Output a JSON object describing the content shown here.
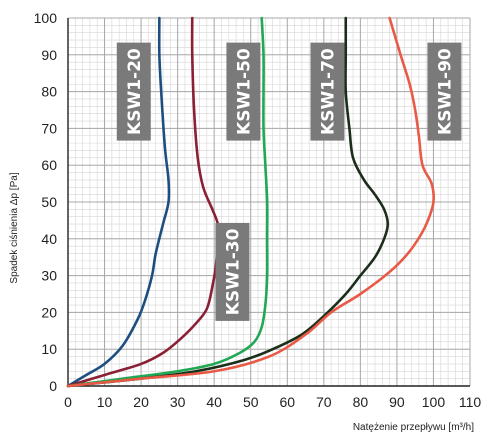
{
  "chart_data": {
    "type": "line",
    "title": "",
    "xlabel": "Natężenie przepływu [m³/h]",
    "ylabel": "Spadek ciśnienia Δp [Pa]",
    "xlim": [
      0,
      110
    ],
    "ylim": [
      0,
      100
    ],
    "x_ticks": [
      "0",
      "10",
      "20",
      "30",
      "40",
      "50",
      "60",
      "70",
      "80",
      "90",
      "100",
      "110"
    ],
    "y_ticks": [
      "0",
      "10",
      "20",
      "30",
      "40",
      "50",
      "60",
      "70",
      "80",
      "90",
      "100"
    ],
    "grid": {
      "major": true,
      "minor": true,
      "minor_step_x": 2,
      "minor_step_y": 2
    },
    "series": [
      {
        "name": "KSW1-20",
        "color": "#1c4f80",
        "points": [
          [
            0,
            0
          ],
          [
            5,
            3
          ],
          [
            10,
            6
          ],
          [
            15,
            11
          ],
          [
            19,
            18
          ],
          [
            21,
            23
          ],
          [
            23,
            30
          ],
          [
            24,
            36
          ],
          [
            26,
            44
          ],
          [
            27.5,
            50
          ],
          [
            27.5,
            56
          ],
          [
            26.5,
            65
          ],
          [
            25.5,
            80
          ],
          [
            25,
            90
          ],
          [
            25,
            100
          ]
        ]
      },
      {
        "name": "KSW1-30",
        "color": "#8b1f33",
        "points": [
          [
            0,
            0
          ],
          [
            10,
            3
          ],
          [
            20,
            6
          ],
          [
            26,
            9
          ],
          [
            31,
            13
          ],
          [
            35,
            17
          ],
          [
            38,
            21
          ],
          [
            39.5,
            27
          ],
          [
            40.5,
            33
          ],
          [
            41,
            40
          ],
          [
            41,
            44
          ],
          [
            39.5,
            48
          ],
          [
            37,
            54
          ],
          [
            35.5,
            62
          ],
          [
            34.5,
            75
          ],
          [
            34,
            90
          ],
          [
            34,
            100
          ]
        ]
      },
      {
        "name": "KSW1-50",
        "color": "#20a855",
        "points": [
          [
            0,
            0
          ],
          [
            15,
            2
          ],
          [
            30,
            4
          ],
          [
            40,
            6
          ],
          [
            47,
            9
          ],
          [
            51,
            12
          ],
          [
            53,
            16
          ],
          [
            54,
            22
          ],
          [
            54.5,
            30
          ],
          [
            54.5,
            40
          ],
          [
            54.5,
            50
          ],
          [
            54,
            60
          ],
          [
            53.5,
            70
          ],
          [
            53.5,
            80
          ],
          [
            53.5,
            90
          ],
          [
            53,
            100
          ]
        ]
      },
      {
        "name": "KSW1-70",
        "color": "#1a2e1a",
        "points": [
          [
            0,
            0
          ],
          [
            20,
            2
          ],
          [
            35,
            4
          ],
          [
            48,
            7
          ],
          [
            56,
            10
          ],
          [
            64,
            14
          ],
          [
            70,
            19
          ],
          [
            76,
            25
          ],
          [
            80,
            30
          ],
          [
            84,
            35
          ],
          [
            86.5,
            40
          ],
          [
            87.5,
            44
          ],
          [
            86.5,
            48
          ],
          [
            84,
            52
          ],
          [
            81,
            56
          ],
          [
            78,
            62
          ],
          [
            77,
            70
          ],
          [
            76,
            80
          ],
          [
            76,
            90
          ],
          [
            76,
            100
          ]
        ]
      },
      {
        "name": "KSW1-90",
        "color": "#e85a45",
        "points": [
          [
            0,
            0
          ],
          [
            20,
            2
          ],
          [
            40,
            4
          ],
          [
            55,
            8
          ],
          [
            65,
            14
          ],
          [
            72,
            20
          ],
          [
            80,
            25
          ],
          [
            88,
            31
          ],
          [
            93,
            36
          ],
          [
            96.5,
            41
          ],
          [
            98.5,
            45
          ],
          [
            100,
            50
          ],
          [
            99.5,
            55
          ],
          [
            97,
            60
          ],
          [
            96,
            68
          ],
          [
            95,
            75
          ],
          [
            93.5,
            82
          ],
          [
            91,
            90
          ],
          [
            88,
            100
          ]
        ]
      }
    ],
    "labels": [
      {
        "text": "KSW1-20",
        "anchor": [
          18,
          80
        ],
        "series": 0
      },
      {
        "text": "KSW1-50",
        "anchor": [
          48,
          80
        ],
        "series": 2
      },
      {
        "text": "KSW1-70",
        "anchor": [
          71,
          80
        ],
        "series": 3
      },
      {
        "text": "KSW1-90",
        "anchor": [
          103,
          80
        ],
        "series": 4
      },
      {
        "text": "KSW1-30",
        "anchor": [
          45,
          31
        ],
        "series": 1
      }
    ],
    "label_box_color": "#7a7a7a"
  }
}
